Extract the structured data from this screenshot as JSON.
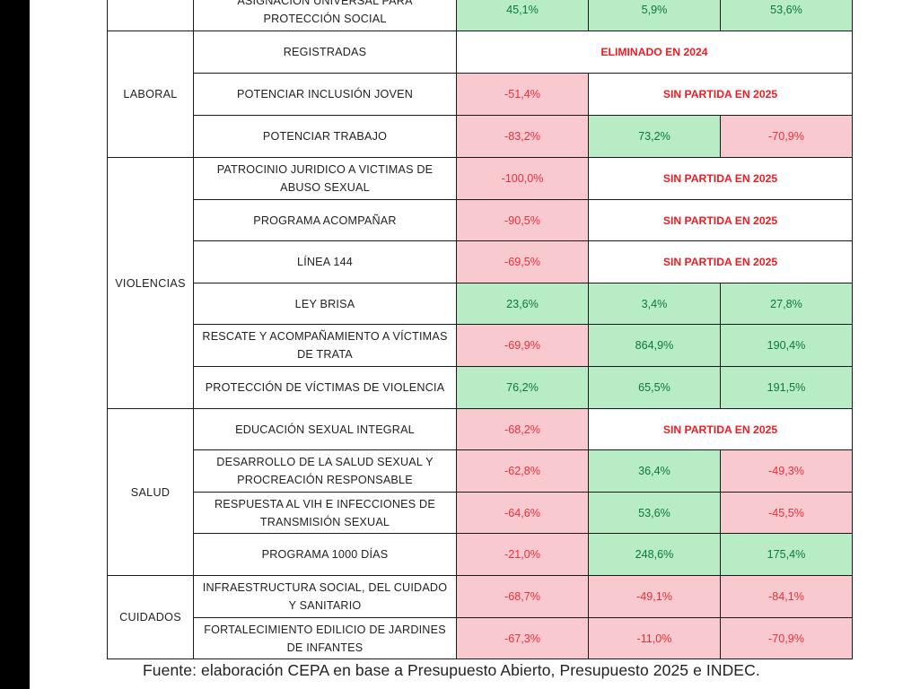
{
  "colors": {
    "negative_bg": "#f8c9cf",
    "negative_text": "#e8303a",
    "positive_bg": "#b7ecc4",
    "positive_text": "#0a7a36",
    "note_text": "#ee1c24"
  },
  "table": {
    "categories": {
      "laboral": "LABORAL",
      "violencias": "VIOLENCIAS",
      "salud": "SALUD",
      "cuidados": "CUIDADOS"
    },
    "rows": [
      {
        "program": "ASIGNACIÓN UNIVERSAL PARA PROTECCIÓN SOCIAL",
        "v1": "45,1%",
        "v2": "5,9%",
        "v3": "53,6%"
      },
      {
        "program": "REGISTRADAS",
        "note": "ELIMINADO EN 2024"
      },
      {
        "program": "POTENCIAR INCLUSIÓN JOVEN",
        "v1": "-51,4%",
        "note": "SIN PARTIDA EN 2025"
      },
      {
        "program": "POTENCIAR TRABAJO",
        "v1": "-83,2%",
        "v2": "73,2%",
        "v3": "-70,9%"
      },
      {
        "program": "PATROCINIO JURIDICO A VICTIMAS DE ABUSO SEXUAL",
        "v1": "-100,0%",
        "note": "SIN PARTIDA EN 2025"
      },
      {
        "program": "PROGRAMA ACOMPAÑAR",
        "v1": "-90,5%",
        "note": "SIN PARTIDA EN 2025"
      },
      {
        "program": "LÍNEA 144",
        "v1": "-69,5%",
        "note": "SIN PARTIDA EN 2025"
      },
      {
        "program": "LEY BRISA",
        "v1": "23,6%",
        "v2": "3,4%",
        "v3": "27,8%"
      },
      {
        "program": "RESCATE Y ACOMPAÑAMIENTO A VÍCTIMAS DE TRATA",
        "v1": "-69,9%",
        "v2": "864,9%",
        "v3": "190,4%"
      },
      {
        "program": "PROTECCIÓN DE VÍCTIMAS DE VIOLENCIA",
        "v1": "76,2%",
        "v2": "65,5%",
        "v3": "191,5%"
      },
      {
        "program": "EDUCACIÓN SEXUAL INTEGRAL",
        "v1": "-68,2%",
        "note": "SIN PARTIDA EN 2025"
      },
      {
        "program": "DESARROLLO DE LA SALUD SEXUAL Y PROCREACIÓN RESPONSABLE",
        "v1": "-62,8%",
        "v2": "36,4%",
        "v3": "-49,3%"
      },
      {
        "program": "RESPUESTA AL VIH E INFECCIONES DE TRANSMISIÓN SEXUAL",
        "v1": "-64,6%",
        "v2": "53,6%",
        "v3": "-45,5%"
      },
      {
        "program": "PROGRAMA 1000 DÍAS",
        "v1": "-21,0%",
        "v2": "248,6%",
        "v3": "175,4%"
      },
      {
        "program": "INFRAESTRUCTURA SOCIAL, DEL CUIDADO Y SANITARIO",
        "v1": "-68,7%",
        "v2": "-49,1%",
        "v3": "-84,1%"
      },
      {
        "program": "FORTALECIMIENTO EDILICIO DE JARDINES DE INFANTES",
        "v1": "-67,3%",
        "v2": "-11,0%",
        "v3": "-70,9%"
      }
    ]
  },
  "source_note": "Fuente: elaboración CEPA en base a Presupuesto Abierto, Presupuesto 2025 e INDEC."
}
